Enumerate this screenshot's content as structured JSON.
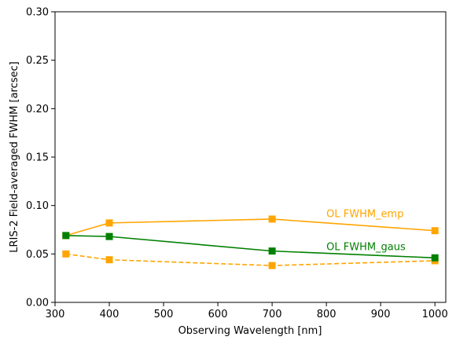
{
  "chart_data": {
    "type": "line",
    "xlabel": "Observing Wavelength [nm]",
    "ylabel": "LRIS-2 Field-averaged FWHM [arcsec]",
    "xlim": [
      300,
      1020
    ],
    "ylim": [
      0.0,
      0.3
    ],
    "xticks": [
      300,
      400,
      500,
      600,
      700,
      800,
      900,
      1000
    ],
    "yticks": [
      0.0,
      0.05,
      0.1,
      0.15,
      0.2,
      0.25,
      0.3
    ],
    "xtick_labels": [
      "300",
      "400",
      "500",
      "600",
      "700",
      "800",
      "900",
      "1000"
    ],
    "ytick_labels": [
      "0.00",
      "0.05",
      "0.10",
      "0.15",
      "0.20",
      "0.25",
      "0.30"
    ],
    "grid": false,
    "series": [
      {
        "id": "emp",
        "color": "#FFA500",
        "linestyle": "solid",
        "marker": "square",
        "x": [
          320,
          400,
          700,
          1000
        ],
        "y": [
          0.069,
          0.082,
          0.086,
          0.074
        ]
      },
      {
        "id": "emp-dashed",
        "color": "#FFA500",
        "linestyle": "dashed",
        "marker": "square",
        "x": [
          320,
          400,
          700,
          1000
        ],
        "y": [
          0.05,
          0.044,
          0.038,
          0.043
        ]
      },
      {
        "id": "gaus",
        "color": "#008000",
        "linestyle": "solid",
        "marker": "square",
        "x": [
          320,
          400,
          700,
          1000
        ],
        "y": [
          0.069,
          0.068,
          0.053,
          0.046
        ]
      }
    ],
    "annotations": [
      {
        "text": "OL FWHM_emp",
        "x": 800,
        "y": 0.0915,
        "color": "#FFA500"
      },
      {
        "text": "OL FWHM_gaus",
        "x": 800,
        "y": 0.0575,
        "color": "#008000"
      }
    ]
  }
}
